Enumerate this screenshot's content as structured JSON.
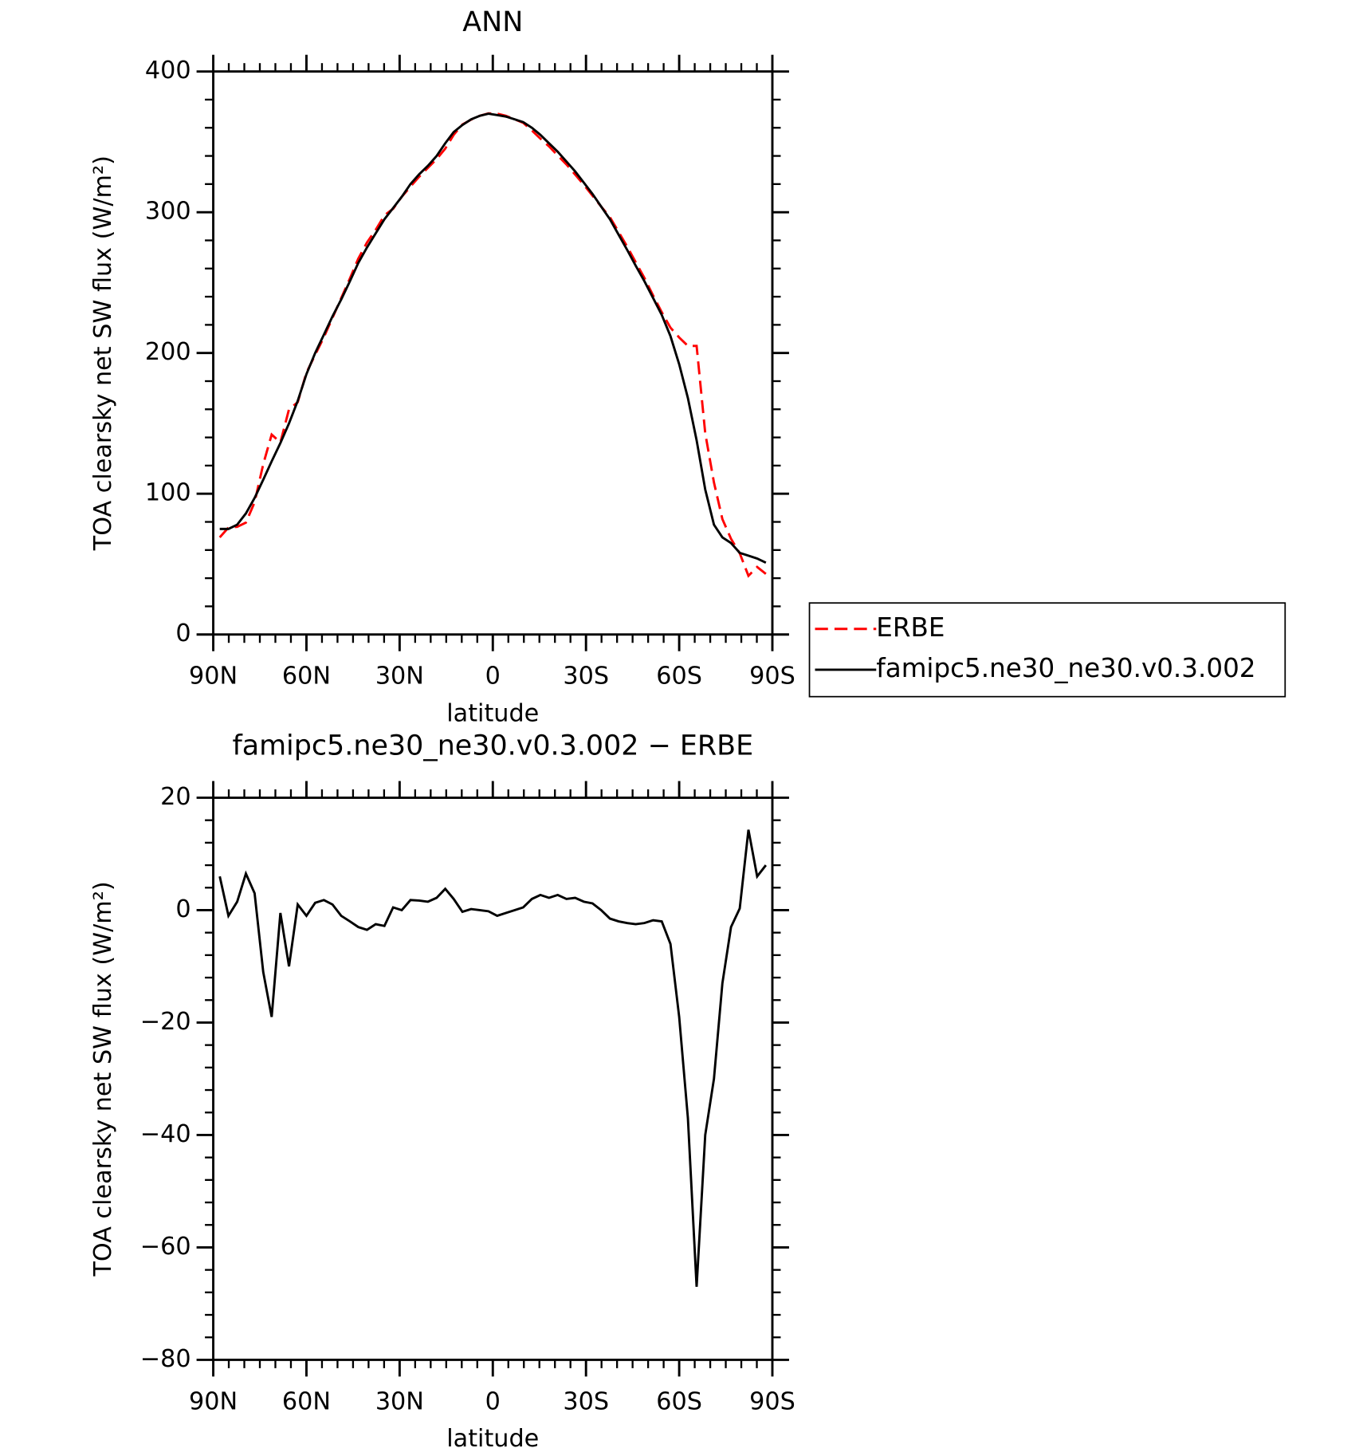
{
  "chart_data": [
    {
      "type": "line",
      "title": "ANN",
      "xlabel": "latitude",
      "ylabel": "TOA clearsky net SW flux (W/m²)",
      "x": [
        87.9,
        85.1,
        82.3,
        79.5,
        76.7,
        73.9,
        71.2,
        68.4,
        65.6,
        62.8,
        60.0,
        57.2,
        54.4,
        51.6,
        48.8,
        46.0,
        43.3,
        40.5,
        37.7,
        34.9,
        32.1,
        29.3,
        26.5,
        23.7,
        20.9,
        18.1,
        15.3,
        12.6,
        9.8,
        7.0,
        4.2,
        1.4,
        -1.4,
        -4.2,
        -7.0,
        -9.8,
        -12.6,
        -15.3,
        -18.1,
        -20.9,
        -23.7,
        -26.5,
        -29.3,
        -32.1,
        -34.9,
        -37.7,
        -40.5,
        -43.3,
        -46.0,
        -48.8,
        -51.6,
        -54.4,
        -57.2,
        -60.0,
        -62.8,
        -65.6,
        -68.4,
        -71.2,
        -73.9,
        -76.7,
        -79.5,
        -82.3,
        -85.1,
        -87.9
      ],
      "series": [
        {
          "name": "ERBE",
          "color": "#ff0000",
          "linestyle": "dashed",
          "values": [
            69,
            76,
            76.5,
            79.5,
            94,
            121,
            142,
            136.5,
            160,
            165,
            186,
            198.7,
            211.2,
            225,
            239,
            253,
            267,
            278.5,
            287.5,
            297.8,
            302.5,
            311,
            318.2,
            325.3,
            331.5,
            337.8,
            345.2,
            355,
            362.3,
            365.8,
            368.5,
            370.2,
            370,
            368.5,
            366,
            363.5,
            358,
            352.3,
            346.8,
            340.3,
            334,
            326.8,
            319.5,
            311.8,
            304,
            296.5,
            286,
            275.3,
            264.5,
            253.3,
            240.8,
            229,
            218,
            211,
            205,
            205,
            143,
            108,
            82,
            68,
            57.7,
            41.7,
            48,
            43
          ]
        },
        {
          "name": "famipc5.ne30_ne30.v0.3.002",
          "color": "#000000",
          "linestyle": "solid",
          "values": [
            75,
            75,
            78,
            86,
            97,
            110,
            123,
            136,
            150,
            166,
            185,
            200,
            213,
            226,
            238,
            251,
            264,
            275,
            285,
            295,
            303,
            311,
            320,
            327,
            333,
            340,
            349,
            357,
            362,
            366,
            368.5,
            370,
            369,
            368,
            366,
            364,
            360,
            355,
            349,
            343,
            336,
            329,
            321,
            313,
            304,
            295,
            284,
            273,
            262,
            251,
            239,
            227,
            212,
            192,
            168,
            138,
            103,
            78,
            69,
            65,
            58,
            56,
            54,
            51
          ]
        }
      ],
      "xlim": [
        90,
        -90
      ],
      "xticks": [
        {
          "value": 90,
          "label": "90N"
        },
        {
          "value": 60,
          "label": "60N"
        },
        {
          "value": 30,
          "label": "30N"
        },
        0,
        {
          "value": -30,
          "label": "30S"
        },
        {
          "value": -60,
          "label": "60S"
        },
        {
          "value": -90,
          "label": "90S"
        }
      ],
      "ylim": [
        0,
        400
      ],
      "yticks": [
        0,
        100,
        200,
        300,
        400
      ],
      "legend": "right",
      "grid": false
    },
    {
      "type": "line",
      "title": "famipc5.ne30_ne30.v0.3.002 − ERBE",
      "xlabel": "latitude",
      "ylabel": "TOA clearsky net SW flux (W/m²)",
      "x": [
        87.9,
        85.1,
        82.3,
        79.5,
        76.7,
        73.9,
        71.2,
        68.4,
        65.6,
        62.8,
        60.0,
        57.2,
        54.4,
        51.6,
        48.8,
        46.0,
        43.3,
        40.5,
        37.7,
        34.9,
        32.1,
        29.3,
        26.5,
        23.7,
        20.9,
        18.1,
        15.3,
        12.6,
        9.8,
        7.0,
        4.2,
        1.4,
        -1.4,
        -4.2,
        -7.0,
        -9.8,
        -12.6,
        -15.3,
        -18.1,
        -20.9,
        -23.7,
        -26.5,
        -29.3,
        -32.1,
        -34.9,
        -37.7,
        -40.5,
        -43.3,
        -46.0,
        -48.8,
        -51.6,
        -54.4,
        -57.2,
        -60.0,
        -62.8,
        -65.6,
        -68.4,
        -71.2,
        -73.9,
        -76.7,
        -79.5,
        -82.3,
        -85.1,
        -87.9
      ],
      "series": [
        {
          "color": "#000000",
          "linestyle": "solid",
          "values": [
            6,
            -1,
            1.5,
            6.5,
            3,
            -11,
            -19,
            -0.5,
            -10,
            1,
            -1,
            1.3,
            1.8,
            1,
            -1,
            -2,
            -3,
            -3.5,
            -2.5,
            -2.8,
            0.5,
            0,
            1.8,
            1.7,
            1.5,
            2.2,
            3.8,
            2,
            -0.3,
            0.2,
            0,
            -0.2,
            -1,
            -0.5,
            0,
            0.5,
            2,
            2.7,
            2.2,
            2.7,
            2,
            2.2,
            1.5,
            1.2,
            0,
            -1.5,
            -2,
            -2.3,
            -2.5,
            -2.3,
            -1.8,
            -2,
            -6,
            -19,
            -37,
            -67,
            -40,
            -30,
            -13,
            -3,
            0.3,
            14.3,
            6,
            8
          ]
        }
      ],
      "xlim": [
        90,
        -90
      ],
      "xticks": [
        {
          "value": 90,
          "label": "90N"
        },
        {
          "value": 60,
          "label": "60N"
        },
        {
          "value": 30,
          "label": "30N"
        },
        0,
        {
          "value": -30,
          "label": "30S"
        },
        {
          "value": -60,
          "label": "60S"
        },
        {
          "value": -90,
          "label": "90S"
        }
      ],
      "ylim": [
        -80,
        20
      ],
      "yticks": [
        {
          "value": -80,
          "label": "−80"
        },
        {
          "value": -60,
          "label": "−60"
        },
        {
          "value": -40,
          "label": "−40"
        },
        {
          "value": -20,
          "label": "−20"
        },
        0,
        20
      ],
      "grid": false
    }
  ]
}
